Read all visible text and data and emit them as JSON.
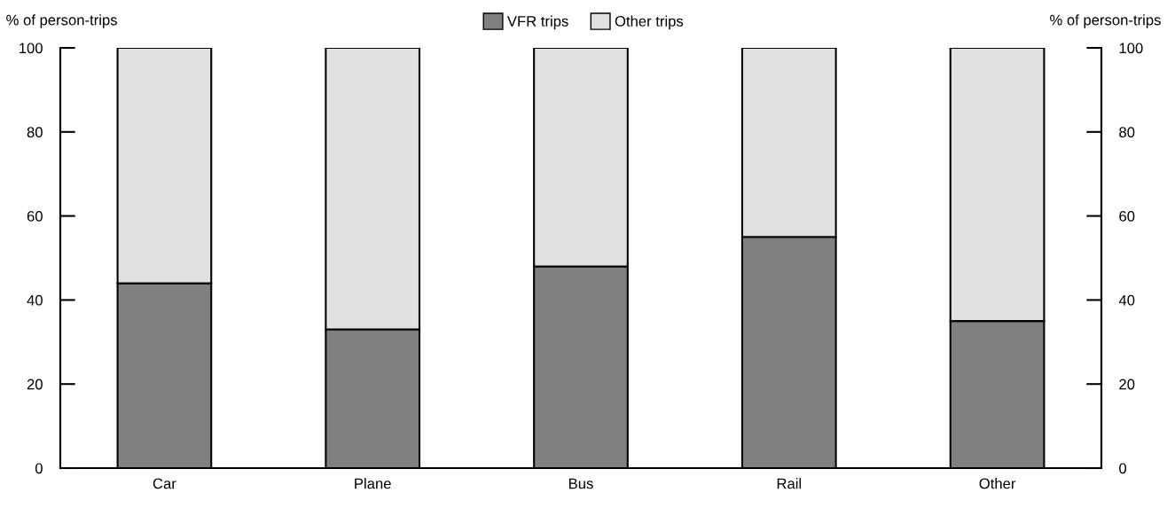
{
  "chart_data": {
    "type": "bar",
    "stacked": true,
    "categories": [
      "Car",
      "Plane",
      "Bus",
      "Rail",
      "Other"
    ],
    "series": [
      {
        "name": "VFR trips",
        "color": "#808080",
        "values": [
          44,
          33,
          48,
          55,
          35
        ]
      },
      {
        "name": "Other trips",
        "color": "#e0e0e0",
        "values": [
          56,
          67,
          52,
          45,
          65
        ]
      }
    ],
    "ylabel": "% of person-trips",
    "y2label": "% of person-trips",
    "ylim": [
      0,
      100
    ],
    "yticks": [
      0,
      20,
      40,
      60,
      80,
      100
    ],
    "y2lim": [
      0,
      100
    ],
    "y2ticks": [
      0,
      20,
      40,
      60,
      80,
      100
    ],
    "grid": false,
    "legend": "top"
  }
}
